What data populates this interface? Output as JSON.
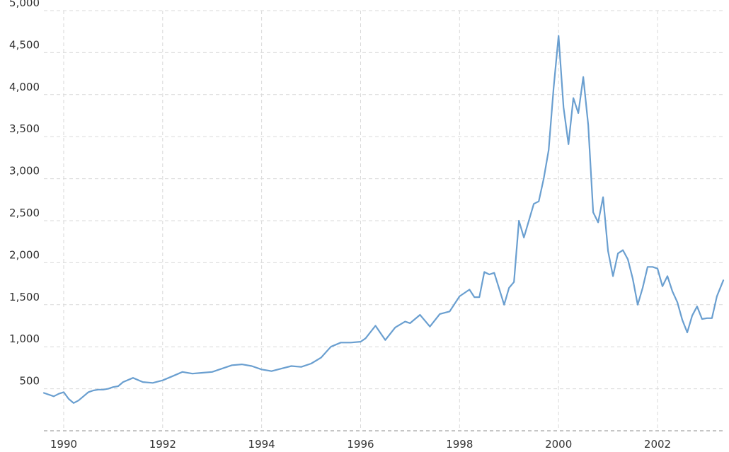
{
  "chart_data": {
    "type": "line",
    "title": "",
    "xlabel": "",
    "ylabel": "",
    "grid": true,
    "legend": "none",
    "color": "#6a9fd0",
    "xlim": [
      1989.6,
      2003.33
    ],
    "ylim": [
      0,
      5000
    ],
    "yticks": [
      {
        "value": 500,
        "label": "500"
      },
      {
        "value": 1000,
        "label": "1,000"
      },
      {
        "value": 1500,
        "label": "1,500"
      },
      {
        "value": 2000,
        "label": "2,000"
      },
      {
        "value": 2500,
        "label": "2,500"
      },
      {
        "value": 3000,
        "label": "3,000"
      },
      {
        "value": 3500,
        "label": "3,500"
      },
      {
        "value": 4000,
        "label": "4,000"
      },
      {
        "value": 4500,
        "label": "4,500"
      },
      {
        "value": 5000,
        "label": "5,000"
      }
    ],
    "xticks": [
      {
        "value": 1990,
        "label": "1990"
      },
      {
        "value": 1992,
        "label": "1992"
      },
      {
        "value": 1994,
        "label": "1994"
      },
      {
        "value": 1996,
        "label": "1996"
      },
      {
        "value": 1998,
        "label": "1998"
      },
      {
        "value": 2000,
        "label": "2000"
      },
      {
        "value": 2002,
        "label": "2002"
      }
    ],
    "series": [
      {
        "x": [
          1989.6,
          1989.8,
          1989.9,
          1990.0,
          1990.1,
          1990.2,
          1990.3,
          1990.4,
          1990.5,
          1990.6,
          1990.7,
          1990.8,
          1990.9,
          1991.0,
          1991.1,
          1991.2,
          1991.4,
          1991.6,
          1991.8,
          1992.0,
          1992.2,
          1992.4,
          1992.6,
          1992.8,
          1993.0,
          1993.2,
          1993.4,
          1993.6,
          1993.8,
          1994.0,
          1994.2,
          1994.4,
          1994.6,
          1994.8,
          1995.0,
          1995.2,
          1995.4,
          1995.6,
          1995.8,
          1996.0,
          1996.1,
          1996.3,
          1996.5,
          1996.7,
          1996.9,
          1997.0,
          1997.2,
          1997.4,
          1997.6,
          1997.8,
          1998.0,
          1998.2,
          1998.3,
          1998.4,
          1998.5,
          1998.6,
          1998.7,
          1998.9,
          1999.0,
          1999.1,
          1999.2,
          1999.3,
          1999.4,
          1999.5,
          1999.6,
          1999.7,
          1999.8,
          1999.9,
          2000.0,
          2000.1,
          2000.2,
          2000.3,
          2000.4,
          2000.5,
          2000.6,
          2000.7,
          2000.8,
          2000.9,
          2001.0,
          2001.1,
          2001.2,
          2001.3,
          2001.4,
          2001.5,
          2001.6,
          2001.7,
          2001.8,
          2001.9,
          2002.0,
          2002.1,
          2002.2,
          2002.3,
          2002.4,
          2002.5,
          2002.6,
          2002.7,
          2002.8,
          2002.9,
          2003.0,
          2003.1,
          2003.2,
          2003.33
        ],
        "values": [
          450,
          410,
          440,
          460,
          380,
          330,
          360,
          410,
          460,
          480,
          490,
          490,
          500,
          520,
          530,
          580,
          630,
          580,
          570,
          600,
          650,
          700,
          680,
          690,
          700,
          740,
          780,
          790,
          770,
          730,
          710,
          740,
          770,
          760,
          800,
          870,
          1000,
          1050,
          1050,
          1060,
          1100,
          1250,
          1080,
          1230,
          1300,
          1280,
          1380,
          1240,
          1390,
          1420,
          1600,
          1680,
          1590,
          1590,
          1890,
          1860,
          1880,
          1500,
          1700,
          1770,
          2500,
          2300,
          2500,
          2700,
          2730,
          3000,
          3340,
          4080,
          4700,
          3850,
          3410,
          3960,
          3780,
          4210,
          3640,
          2600,
          2480,
          2780,
          2140,
          1840,
          2110,
          2150,
          2040,
          1810,
          1500,
          1700,
          1950,
          1950,
          1930,
          1720,
          1840,
          1660,
          1530,
          1320,
          1170,
          1370,
          1480,
          1330,
          1340,
          1340,
          1600,
          1790
        ]
      }
    ]
  }
}
